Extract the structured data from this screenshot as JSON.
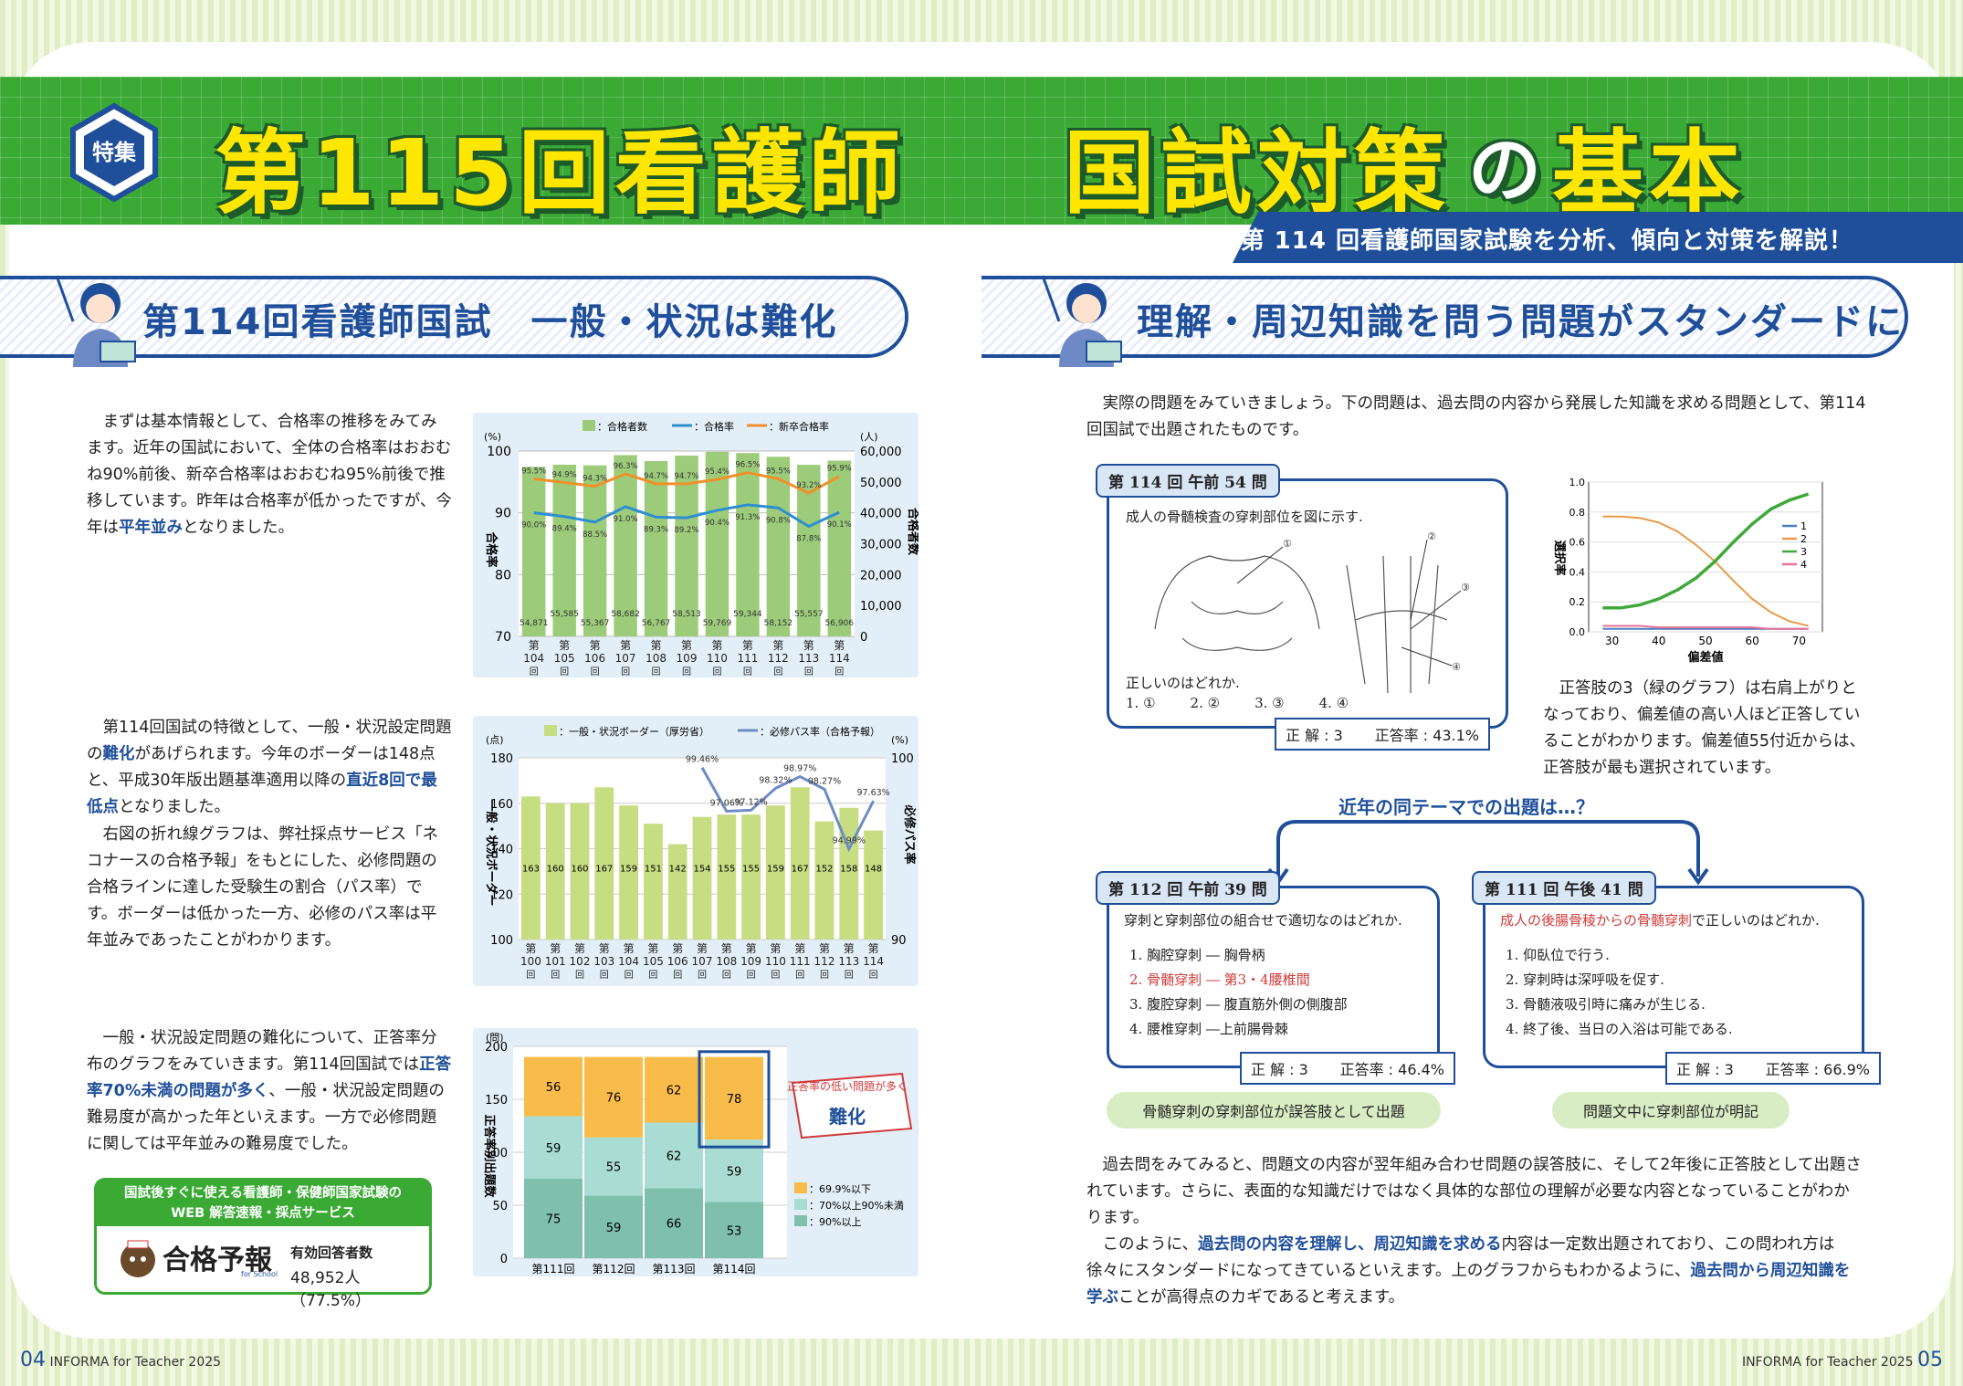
{
  "banner": {
    "badge": "特集",
    "title_a": "第115回看護師",
    "title_b": "国試対策",
    "title_c": "の",
    "title_d": "基本",
    "subtitle": "第 114 回看護師国家試験を分析、傾向と対策を解説！"
  },
  "left": {
    "heading": "第114回看護師国試　一般・状況は難化",
    "p1": "まずは基本情報として、合格率の推移をみてみます。近年の国試において、全体の合格率はおおむね90%前後、新卒合格率はおおむね95%前後で推移しています。昨年は合格率が低かったですが、今年は",
    "p1_hl": "平年並み",
    "p1_end": "となりました。",
    "p2a": "第114回国試の特徴として、一般・状況設定問題の",
    "p2_hl1": "難化",
    "p2b": "があげられます。今年のボーダーは148点と、平成30年版出題基準適用以降の",
    "p2_hl2": "直近8回で最低点",
    "p2c": "となりました。",
    "p3": "右図の折れ線グラフは、弊社採点サービス「ネコナースの合格予報」をもとにした、必修問題の合格ラインに達した受験生の割合（パス率）です。ボーダーは低かった一方、必修のパス率は平年並みであったことがわかります。",
    "p4a": "一般・状況設定問題の難化について、正答率分布のグラフをみていきます。第114回国試では",
    "p4_hl": "正答率70%未満の問題が多く",
    "p4b": "、一般・状況設定問題の難易度が高かった年といえます。一方で必修問題に関しては平年並みの難易度でした。",
    "promo_title": "国試後すぐに使える看護師・保健師国家試験の\nWEB 解答速報・採点サービス",
    "promo_logo": "合格予報",
    "promo_logo_small": "for School",
    "promo_label": "有効回答者数",
    "promo_value": "48,952人（77.5%）"
  },
  "right": {
    "heading": "理解・周辺知識を問う問題がスタンダードに",
    "intro": "実際の問題をみていきましょう。下の問題は、過去問の内容から発展した知識を求める問題として、第114回国試で出題されたものです。",
    "q114": {
      "tab": "第 114 回 午前 54 問",
      "text": "成人の骨髄検査の穿刺部位を図に示す.",
      "q": "正しいのはどれか.",
      "opts": [
        "1. ①",
        "2. ②",
        "3. ③",
        "4. ④"
      ],
      "ans": "正 解 : 3",
      "rate": "正答率 : 43.1%"
    },
    "note": "正答肢の3（緑のグラフ）は右肩上がりとなっており、偏差値の高い人ほど正答していることがわかります。偏差値55付近からは、正答肢が最も選択されています。",
    "recent": "近年の同テーマでの出題は…？",
    "q112": {
      "tab": "第 112 回 午前 39 問",
      "text": "穿刺と穿刺部位の組合せで適切なのはどれか.",
      "opts": [
        "1.  胸腔穿刺 ― 胸骨柄",
        "2.  骨髄穿刺 ― 第3・4腰椎間",
        "3.  腹腔穿刺 ― 腹直筋外側の側腹部",
        "4.  腰椎穿刺 ―上前腸骨棘"
      ],
      "ans": "正 解 : 3",
      "rate": "正答率 : 46.4%",
      "bubble": "骨髄穿刺の穿刺部位が誤答肢として出題"
    },
    "q111": {
      "tab": "第 111 回 午後 41 問",
      "text_red": "成人の後腸骨稜からの骨髄穿刺",
      "text_rest": "で正しいのはどれか.",
      "opts": [
        "1.  仰臥位で行う.",
        "2.  穿刺時は深呼吸を促す.",
        "3.  骨髄液吸引時に痛みが生じる.",
        "4.  終了後、当日の入浴は可能である."
      ],
      "ans": "正 解 : 3",
      "rate": "正答率 : 66.9%",
      "bubble": "問題文中に穿刺部位が明記"
    },
    "p5": "過去問をみてみると、問題文の内容が翌年組み合わせ問題の誤答肢に、そして2年後に正答肢として出題されています。さらに、表面的な知識だけではなく具体的な部位の理解が必要な内容となっていることがわかります。",
    "p6a": "このように、",
    "p6_hl1": "過去問の内容を理解し、周辺知識を求める",
    "p6b": "内容は一定数出題されており、この問われ方は徐々にスタンダードになってきているといえます。上のグラフからもわかるように、",
    "p6_hl2": "過去問から周辺知識を学ぶ",
    "p6c": "ことが高得点のカギであると考えます。"
  },
  "footer": {
    "left_num": "04",
    "left_text": "INFORMA for Teacher 2025",
    "right_text": "INFORMA for Teacher 2025",
    "right_num": "05"
  },
  "colors": {
    "green": "#3aaa35",
    "navy": "#1f4f9a",
    "yellow": "#ffe600",
    "bar_green": "#9ccc7a",
    "bar_lime": "#c6dd82",
    "orange": "#f0902a",
    "blue": "#2e8fd0",
    "dist_orange": "#f9bb4a",
    "dist_light": "#a9dcd2",
    "dist_teal": "#7ec0ac"
  },
  "chart_data": [
    {
      "type": "bar",
      "title": "",
      "categories": [
        "第104回",
        "第105回",
        "第106回",
        "第107回",
        "第108回",
        "第109回",
        "第110回",
        "第111回",
        "第112回",
        "第113回",
        "第114回"
      ],
      "legend": [
        "：合格者数",
        "：合格率",
        "：新卒合格率"
      ],
      "ylabel_left": "合格率",
      "ylabel_right": "合格者数",
      "unit_left": "(%)",
      "unit_right": "(人)",
      "ylim_left": [
        70,
        100
      ],
      "ylim_right": [
        0,
        60000
      ],
      "series": [
        {
          "name": "：合格者数",
          "type": "bar",
          "values": [
            54871,
            55585,
            55367,
            58682,
            56767,
            58513,
            59769,
            59344,
            58152,
            55557,
            56906
          ],
          "labels": [
            "54,871",
            "55,585",
            "55,367",
            "58,682",
            "56,767",
            "58,513",
            "59,769",
            "59,344",
            "58,152",
            "55,557",
            "56,906"
          ]
        },
        {
          "name": "：合格率",
          "type": "line",
          "values": [
            90.0,
            89.4,
            88.5,
            91.0,
            89.3,
            89.2,
            90.4,
            91.3,
            90.8,
            87.8,
            90.1
          ]
        },
        {
          "name": "：新卒合格率",
          "type": "line",
          "values": [
            95.5,
            94.9,
            94.3,
            96.3,
            94.7,
            94.7,
            95.4,
            96.5,
            95.5,
            93.2,
            95.9
          ]
        }
      ]
    },
    {
      "type": "bar",
      "title": "",
      "categories": [
        "第100回",
        "第101回",
        "第102回",
        "第103回",
        "第104回",
        "第105回",
        "第106回",
        "第107回",
        "第108回",
        "第109回",
        "第110回",
        "第111回",
        "第112回",
        "第113回",
        "第114回"
      ],
      "legend": [
        "：一般・状況ボーダー（厚労省）",
        "：必修パス率（合格予報）"
      ],
      "ylabel_left": "一般・状況ボーダー",
      "ylabel_right": "必修パス率",
      "unit_left": "(点)",
      "unit_right": "(%)",
      "ylim_left": [
        100,
        180
      ],
      "ylim_right": [
        90,
        100
      ],
      "series": [
        {
          "name": "：一般・状況ボーダー（厚労省）",
          "type": "bar",
          "values": [
            163,
            160,
            160,
            167,
            159,
            151,
            142,
            154,
            155,
            155,
            159,
            167,
            152,
            158,
            148
          ]
        },
        {
          "name": "：必修パス率（合格予報）",
          "type": "line",
          "x": [
            "第107回",
            "第108回",
            "第109回",
            "第110回",
            "第111回",
            "第112回",
            "第113回",
            "第114回"
          ],
          "values": [
            99.46,
            97.06,
            97.12,
            98.32,
            98.97,
            98.27,
            94.99,
            97.63
          ]
        }
      ]
    },
    {
      "type": "bar",
      "title": "",
      "categories": [
        "第111回",
        "第112回",
        "第113回",
        "第114回"
      ],
      "ylabel": "正答率別出題数",
      "unit": "(問)",
      "ylim": [
        0,
        200
      ],
      "callout": "正答率の低い問題が多く\n難化",
      "series": [
        {
          "name": "：90%以上",
          "values": [
            75,
            59,
            66,
            53
          ]
        },
        {
          "name": "：70%以上90%未満",
          "values": [
            59,
            55,
            62,
            59
          ]
        },
        {
          "name": "：69.9%以下",
          "values": [
            56,
            76,
            62,
            78
          ]
        }
      ]
    },
    {
      "type": "line",
      "title": "",
      "xlabel": "偏差値",
      "ylabel": "選択率",
      "xlim": [
        25,
        75
      ],
      "ylim": [
        0,
        1.0
      ],
      "xticks": [
        30,
        40,
        50,
        60,
        70
      ],
      "yticks": [
        0.0,
        0.2,
        0.4,
        0.6,
        0.8,
        1.0
      ],
      "x": [
        28,
        32,
        36,
        40,
        44,
        48,
        52,
        56,
        60,
        64,
        68,
        72
      ],
      "series": [
        {
          "name": "1",
          "values": [
            0.02,
            0.02,
            0.02,
            0.02,
            0.02,
            0.02,
            0.02,
            0.02,
            0.02,
            0.02,
            0.02,
            0.02
          ]
        },
        {
          "name": "2",
          "values": [
            0.77,
            0.77,
            0.76,
            0.73,
            0.67,
            0.58,
            0.47,
            0.34,
            0.22,
            0.13,
            0.07,
            0.04
          ]
        },
        {
          "name": "3",
          "values": [
            0.16,
            0.16,
            0.18,
            0.22,
            0.28,
            0.36,
            0.47,
            0.6,
            0.72,
            0.82,
            0.88,
            0.92
          ]
        },
        {
          "name": "4",
          "values": [
            0.04,
            0.04,
            0.04,
            0.03,
            0.03,
            0.03,
            0.03,
            0.03,
            0.03,
            0.02,
            0.02,
            0.02
          ]
        }
      ]
    }
  ]
}
